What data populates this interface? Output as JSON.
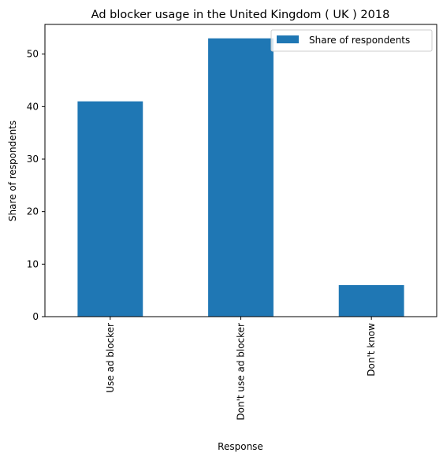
{
  "chart_data": {
    "type": "bar",
    "title": "Ad blocker usage in the United Kingdom ( UK ) 2018",
    "xlabel": "Response",
    "ylabel": "Share of respondents",
    "categories": [
      "Use ad blocker",
      "Don't use ad blocker",
      "Don't know"
    ],
    "series": [
      {
        "name": "Share of respondents",
        "values": [
          41,
          53,
          6
        ]
      }
    ],
    "ylim": [
      0,
      55.65
    ],
    "yticks": [
      0,
      10,
      20,
      30,
      40,
      50
    ],
    "grid": false,
    "legend_position": "top-right",
    "bar_color": "#1f77b4"
  }
}
